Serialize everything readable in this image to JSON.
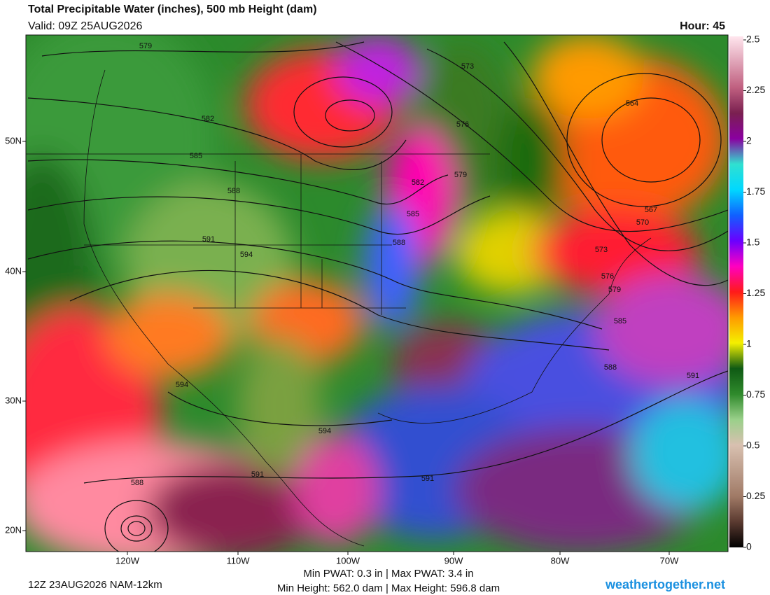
{
  "header": {
    "title": "Total Precipitable Water (inches), 500 mb Height (dam)",
    "valid": "Valid: 09Z 25AUG2026",
    "hour": "Hour: 45"
  },
  "latitude_labels": [
    "50N",
    "40N",
    "30N",
    "20N"
  ],
  "longitude_labels": [
    "120W",
    "110W",
    "100W",
    "90W",
    "80W",
    "70W"
  ],
  "contour_labels": [
    579,
    582,
    585,
    588,
    591,
    594,
    573,
    576,
    579,
    582,
    585,
    588,
    564,
    567,
    570,
    573,
    576,
    579,
    585,
    588,
    591,
    594,
    594,
    591,
    591,
    588
  ],
  "colorbar": {
    "range": [
      0,
      2.5
    ],
    "ticks": [
      0,
      0.25,
      0.5,
      0.75,
      1,
      1.25,
      1.5,
      1.75,
      2,
      2.25,
      2.5
    ]
  },
  "footer": {
    "run": "12Z 23AUG2026 NAM-12km",
    "pwat": "Min PWAT:   0.3 in | Max PWAT:   3.4 in",
    "height": "Min Height: 562.0 dam | Max Height: 596.8 dam",
    "site": "weathertogether.net"
  }
}
